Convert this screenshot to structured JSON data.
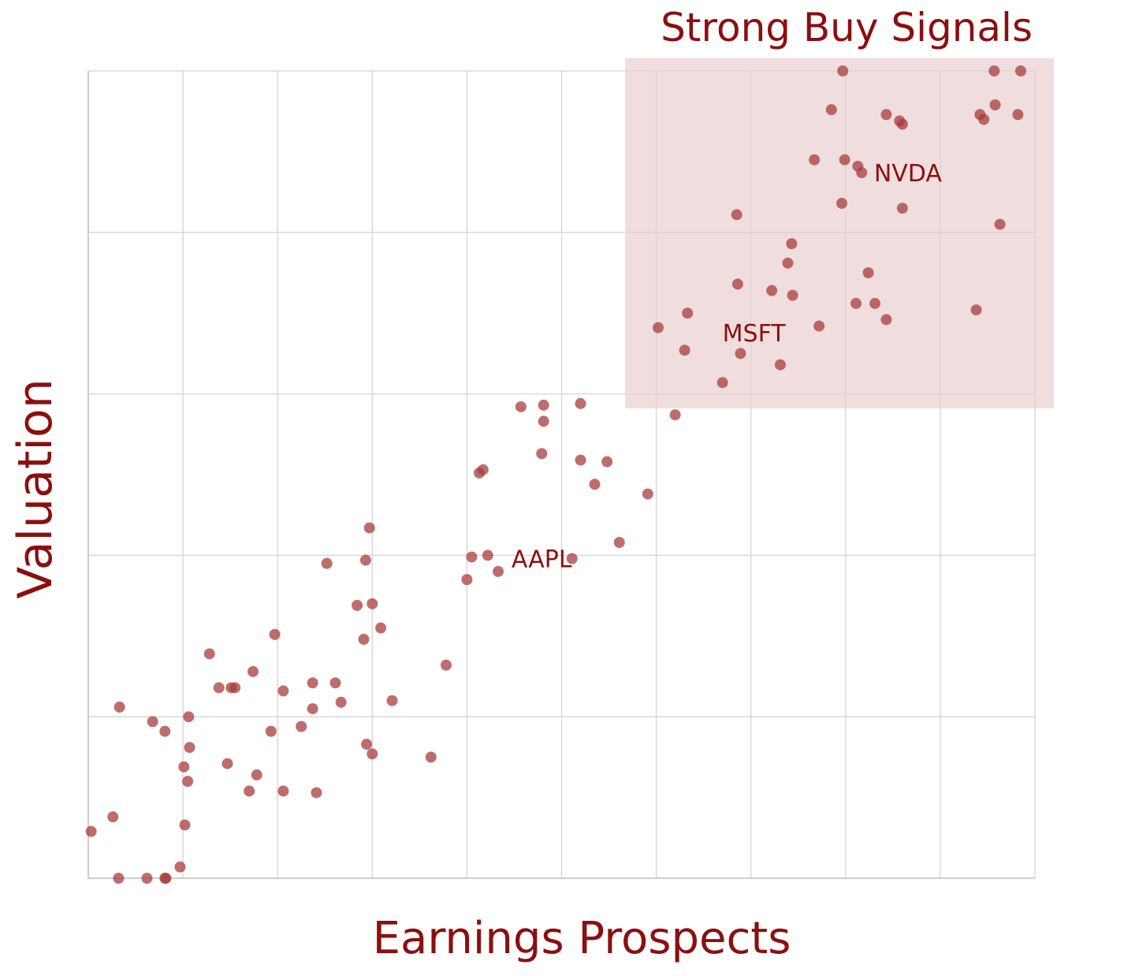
{
  "chart_data": {
    "type": "scatter",
    "title": "",
    "xlabel": "Earnings Prospects",
    "ylabel": "Valuation",
    "xlim": [
      0,
      10
    ],
    "ylim": [
      0,
      5
    ],
    "grid": true,
    "tick_labels_shown": false,
    "point_color": "#a83c3c",
    "accent_color": "#8b0f0f",
    "highlight_region": {
      "label": "Strong Buy Signals",
      "x": [
        5.67,
        10.2
      ],
      "y": [
        2.91,
        5.08
      ],
      "color": "#e9d0d2"
    },
    "annotations": [
      {
        "text": "NVDA",
        "x": 8.3,
        "y": 4.37
      },
      {
        "text": "MSFT",
        "x": 6.7,
        "y": 3.38
      },
      {
        "text": "AAPL",
        "x": 4.47,
        "y": 1.98
      }
    ],
    "points": [
      [
        7.97,
        5.0
      ],
      [
        9.57,
        5.0
      ],
      [
        9.85,
        5.0
      ],
      [
        7.85,
        4.76
      ],
      [
        8.43,
        4.73
      ],
      [
        8.57,
        4.69
      ],
      [
        8.6,
        4.67
      ],
      [
        9.42,
        4.73
      ],
      [
        9.46,
        4.7
      ],
      [
        9.58,
        4.79
      ],
      [
        9.82,
        4.73
      ],
      [
        7.67,
        4.45
      ],
      [
        7.99,
        4.45
      ],
      [
        8.13,
        4.41
      ],
      [
        8.17,
        4.37
      ],
      [
        7.96,
        4.18
      ],
      [
        8.6,
        4.15
      ],
      [
        6.85,
        4.11
      ],
      [
        9.63,
        4.05
      ],
      [
        7.43,
        3.93
      ],
      [
        7.39,
        3.81
      ],
      [
        8.24,
        3.75
      ],
      [
        6.86,
        3.68
      ],
      [
        7.22,
        3.64
      ],
      [
        7.44,
        3.61
      ],
      [
        8.11,
        3.56
      ],
      [
        8.31,
        3.56
      ],
      [
        8.43,
        3.46
      ],
      [
        9.38,
        3.52
      ],
      [
        6.33,
        3.5
      ],
      [
        6.02,
        3.41
      ],
      [
        7.72,
        3.42
      ],
      [
        6.3,
        3.27
      ],
      [
        6.89,
        3.25
      ],
      [
        7.31,
        3.18
      ],
      [
        6.7,
        3.07
      ],
      [
        6.2,
        2.87
      ],
      [
        4.57,
        2.92
      ],
      [
        4.81,
        2.93
      ],
      [
        5.2,
        2.94
      ],
      [
        4.81,
        2.83
      ],
      [
        4.79,
        2.63
      ],
      [
        5.2,
        2.59
      ],
      [
        5.48,
        2.58
      ],
      [
        4.13,
        2.51
      ],
      [
        4.17,
        2.53
      ],
      [
        5.35,
        2.44
      ],
      [
        5.91,
        2.38
      ],
      [
        5.61,
        2.08
      ],
      [
        2.97,
        2.17
      ],
      [
        2.52,
        1.95
      ],
      [
        2.93,
        1.97
      ],
      [
        4.05,
        1.99
      ],
      [
        4.22,
        2.0
      ],
      [
        5.11,
        1.98
      ],
      [
        4.0,
        1.85
      ],
      [
        4.33,
        1.9
      ],
      [
        2.84,
        1.69
      ],
      [
        3.0,
        1.7
      ],
      [
        3.09,
        1.55
      ],
      [
        2.91,
        1.48
      ],
      [
        3.78,
        1.32
      ],
      [
        3.21,
        1.1
      ],
      [
        1.97,
        1.51
      ],
      [
        1.28,
        1.39
      ],
      [
        1.74,
        1.28
      ],
      [
        1.38,
        1.18
      ],
      [
        1.51,
        1.18
      ],
      [
        1.55,
        1.18
      ],
      [
        2.06,
        1.16
      ],
      [
        2.37,
        1.21
      ],
      [
        2.61,
        1.21
      ],
      [
        2.37,
        1.05
      ],
      [
        2.67,
        1.09
      ],
      [
        0.33,
        1.06
      ],
      [
        0.68,
        0.97
      ],
      [
        0.81,
        0.91
      ],
      [
        1.06,
        1.0
      ],
      [
        1.93,
        0.91
      ],
      [
        2.25,
        0.94
      ],
      [
        1.07,
        0.81
      ],
      [
        2.94,
        0.83
      ],
      [
        3.0,
        0.77
      ],
      [
        3.62,
        0.75
      ],
      [
        1.01,
        0.69
      ],
      [
        1.47,
        0.71
      ],
      [
        1.78,
        0.64
      ],
      [
        1.05,
        0.6
      ],
      [
        1.7,
        0.54
      ],
      [
        2.06,
        0.54
      ],
      [
        2.41,
        0.53
      ],
      [
        0.26,
        0.38
      ],
      [
        0.03,
        0.29
      ],
      [
        1.02,
        0.33
      ],
      [
        0.32,
        0.0
      ],
      [
        0.62,
        0.0
      ],
      [
        0.81,
        0.0
      ],
      [
        0.82,
        0.0
      ],
      [
        0.97,
        0.07
      ]
    ]
  }
}
